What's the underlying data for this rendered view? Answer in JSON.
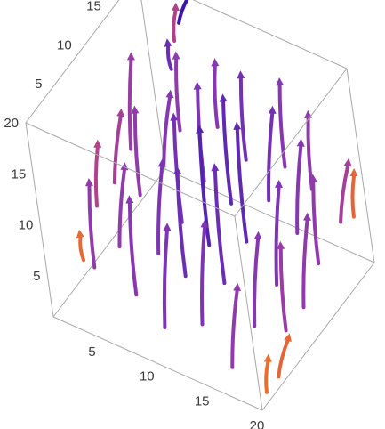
{
  "chart_data": {
    "type": "vector-field-3d",
    "axes": {
      "x": {
        "range": [
          1,
          20
        ],
        "ticks": [
          "5",
          "10",
          "15",
          "20"
        ]
      },
      "y": {
        "range": [
          1,
          20
        ],
        "ticks": [
          "5",
          "10",
          "15",
          "20"
        ]
      },
      "z": {
        "range": [
          1,
          20
        ],
        "ticks": [
          "5",
          "10",
          "15",
          "20"
        ]
      }
    },
    "color_scale": [
      "#f07028",
      "#d85a4a",
      "#c04678",
      "#9a3ca6",
      "#7a34b8",
      "#5a26b0",
      "#2c10a8"
    ],
    "box": true,
    "grid": false,
    "vectors": [
      {
        "x": 2,
        "y": 5,
        "z": 4,
        "dx": 0,
        "dy": 0,
        "dz": 3,
        "m": 0.05
      },
      {
        "x": 2,
        "y": 8,
        "z": 7,
        "dx": 1,
        "dy": 0,
        "dz": 7,
        "m": 0.4
      },
      {
        "x": 2,
        "y": 11,
        "z": 7,
        "dx": 1,
        "dy": 1,
        "dz": 7,
        "m": 0.45
      },
      {
        "x": 2,
        "y": 14,
        "z": 8,
        "dx": 0,
        "dy": 2,
        "dz": 8,
        "m": 0.5
      },
      {
        "x": 5,
        "y": 2,
        "z": 7,
        "dx": 0,
        "dy": 1,
        "dz": 8,
        "m": 0.55
      },
      {
        "x": 5,
        "y": 6,
        "z": 6,
        "dx": 1,
        "dy": 1,
        "dz": 8,
        "m": 0.55
      },
      {
        "x": 5,
        "y": 10,
        "z": 8,
        "dx": 0,
        "dy": 1,
        "dz": 8,
        "m": 0.55
      },
      {
        "x": 5,
        "y": 14,
        "z": 8,
        "dx": 1,
        "dy": 1,
        "dz": 7,
        "m": 0.6
      },
      {
        "x": 5,
        "y": 17,
        "z": 9,
        "dx": 0,
        "dy": 1,
        "dz": 7,
        "m": 0.55
      },
      {
        "x": 8,
        "y": 3,
        "z": 5,
        "dx": 0,
        "dy": 1,
        "dz": 9,
        "m": 0.6
      },
      {
        "x": 8,
        "y": 7,
        "z": 6,
        "dx": 1,
        "dy": 1,
        "dz": 9,
        "m": 0.65
      },
      {
        "x": 8,
        "y": 11,
        "z": 6,
        "dx": 0,
        "dy": 1,
        "dz": 10,
        "m": 0.7
      },
      {
        "x": 8,
        "y": 15,
        "z": 7,
        "dx": 0,
        "dy": 1,
        "dz": 9,
        "m": 0.65
      },
      {
        "x": 8,
        "y": 18,
        "z": 10,
        "dx": 0,
        "dy": 1,
        "dz": 6,
        "m": 0.6
      },
      {
        "x": 11,
        "y": 2,
        "z": 4,
        "dx": 1,
        "dy": 1,
        "dz": 10,
        "m": 0.65
      },
      {
        "x": 11,
        "y": 6,
        "z": 6,
        "dx": 0,
        "dy": 1,
        "dz": 10,
        "m": 0.75
      },
      {
        "x": 11,
        "y": 10,
        "z": 6,
        "dx": 0,
        "dy": 1,
        "dz": 11,
        "m": 0.85
      },
      {
        "x": 11,
        "y": 14,
        "z": 7,
        "dx": 0,
        "dy": 1,
        "dz": 10,
        "m": 0.8
      },
      {
        "x": 11,
        "y": 17,
        "z": 9,
        "dx": 0,
        "dy": 1,
        "dz": 8,
        "m": 0.7
      },
      {
        "x": 14,
        "y": 3,
        "z": 5,
        "dx": 1,
        "dy": 1,
        "dz": 10,
        "m": 0.65
      },
      {
        "x": 14,
        "y": 7,
        "z": 6,
        "dx": 0,
        "dy": 1,
        "dz": 11,
        "m": 0.75
      },
      {
        "x": 14,
        "y": 11,
        "z": 7,
        "dx": 0,
        "dy": 1,
        "dz": 11,
        "m": 0.8
      },
      {
        "x": 14,
        "y": 15,
        "z": 8,
        "dx": 1,
        "dy": 1,
        "dz": 9,
        "m": 0.7
      },
      {
        "x": 14,
        "y": 18,
        "z": 9,
        "dx": 0,
        "dy": 1,
        "dz": 8,
        "m": 0.6
      },
      {
        "x": 17,
        "y": 2,
        "z": 3,
        "dx": 1,
        "dy": 1,
        "dz": 8,
        "m": 0.55
      },
      {
        "x": 17,
        "y": 6,
        "z": 4,
        "dx": 1,
        "dy": 1,
        "dz": 9,
        "m": 0.6
      },
      {
        "x": 17,
        "y": 10,
        "z": 5,
        "dx": 1,
        "dy": 1,
        "dz": 10,
        "m": 0.65
      },
      {
        "x": 17,
        "y": 14,
        "z": 7,
        "dx": 1,
        "dy": 1,
        "dz": 9,
        "m": 0.6
      },
      {
        "x": 17,
        "y": 17,
        "z": 9,
        "dx": 0,
        "dy": 1,
        "dz": 7,
        "m": 0.55
      },
      {
        "x": 20,
        "y": 2,
        "z": 2,
        "dx": 0,
        "dy": 1,
        "dz": 3,
        "m": 0.02
      },
      {
        "x": 20,
        "y": 4,
        "z": 2,
        "dx": 1,
        "dy": 1,
        "dz": 4,
        "m": 0.08
      },
      {
        "x": 20,
        "y": 6,
        "z": 5,
        "dx": 0,
        "dy": 1,
        "dz": 8,
        "m": 0.5
      },
      {
        "x": 20,
        "y": 9,
        "z": 5,
        "dx": 1,
        "dy": 1,
        "dz": 9,
        "m": 0.55
      },
      {
        "x": 20,
        "y": 12,
        "z": 7,
        "dx": 0,
        "dy": 1,
        "dz": 8,
        "m": 0.55
      },
      {
        "x": 20,
        "y": 16,
        "z": 8,
        "dx": 1,
        "dy": 1,
        "dz": 6,
        "m": 0.45
      },
      {
        "x": 20,
        "y": 18,
        "z": 7,
        "dx": 0,
        "dy": 1,
        "dz": 4,
        "m": 0.08
      },
      {
        "x": 5,
        "y": 18,
        "z": 17,
        "dx": 0,
        "dy": 1,
        "dz": 3,
        "m": 0.4
      },
      {
        "x": 5,
        "y": 19,
        "z": 18,
        "dx": 1,
        "dy": 1,
        "dz": 3,
        "m": 0.95
      },
      {
        "x": 5,
        "y": 17,
        "z": 15,
        "dx": 0,
        "dy": 0,
        "dz": 3,
        "m": 0.75
      }
    ]
  }
}
